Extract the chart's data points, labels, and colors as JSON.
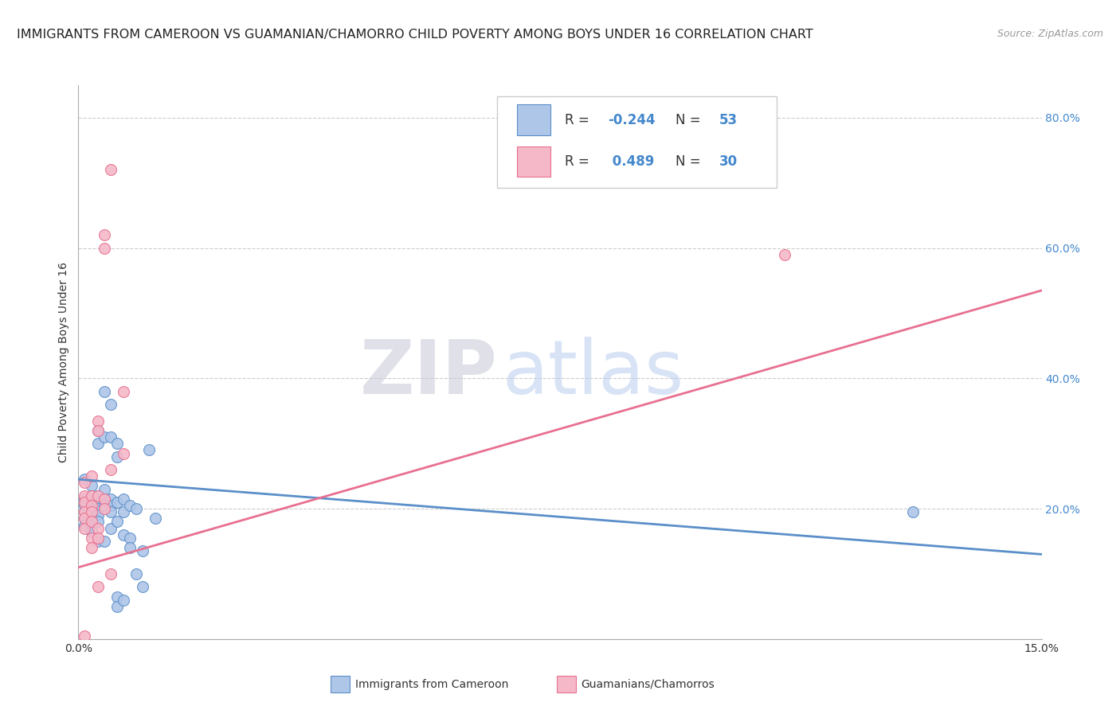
{
  "title": "IMMIGRANTS FROM CAMEROON VS GUAMANIAN/CHAMORRO CHILD POVERTY AMONG BOYS UNDER 16 CORRELATION CHART",
  "source": "Source: ZipAtlas.com",
  "ylabel": "Child Poverty Among Boys Under 16",
  "xlim": [
    0.0,
    0.15
  ],
  "ylim": [
    0.0,
    0.85
  ],
  "yticks": [
    0.0,
    0.2,
    0.4,
    0.6,
    0.8
  ],
  "ytick_labels": [
    "",
    "20.0%",
    "40.0%",
    "60.0%",
    "80.0%"
  ],
  "xticks": [
    0.0,
    0.05,
    0.1,
    0.15
  ],
  "xtick_labels": [
    "0.0%",
    "",
    "",
    "15.0%"
  ],
  "color_blue": "#aec6e8",
  "color_pink": "#f5b8c8",
  "line_blue": "#5b8fc9",
  "line_pink": "#e87090",
  "blue_r": "-0.244",
  "blue_n": "53",
  "pink_r": "0.489",
  "pink_n": "30",
  "blue_points": [
    [
      0.001,
      0.245
    ],
    [
      0.001,
      0.215
    ],
    [
      0.001,
      0.205
    ],
    [
      0.001,
      0.195
    ],
    [
      0.001,
      0.185
    ],
    [
      0.001,
      0.175
    ],
    [
      0.002,
      0.235
    ],
    [
      0.002,
      0.215
    ],
    [
      0.002,
      0.205
    ],
    [
      0.002,
      0.195
    ],
    [
      0.002,
      0.185
    ],
    [
      0.002,
      0.175
    ],
    [
      0.002,
      0.165
    ],
    [
      0.003,
      0.32
    ],
    [
      0.003,
      0.3
    ],
    [
      0.003,
      0.22
    ],
    [
      0.003,
      0.21
    ],
    [
      0.003,
      0.2
    ],
    [
      0.003,
      0.19
    ],
    [
      0.003,
      0.18
    ],
    [
      0.003,
      0.15
    ],
    [
      0.004,
      0.38
    ],
    [
      0.004,
      0.31
    ],
    [
      0.004,
      0.23
    ],
    [
      0.004,
      0.215
    ],
    [
      0.004,
      0.205
    ],
    [
      0.004,
      0.15
    ],
    [
      0.005,
      0.36
    ],
    [
      0.005,
      0.31
    ],
    [
      0.005,
      0.215
    ],
    [
      0.005,
      0.205
    ],
    [
      0.005,
      0.195
    ],
    [
      0.005,
      0.17
    ],
    [
      0.006,
      0.3
    ],
    [
      0.006,
      0.28
    ],
    [
      0.006,
      0.21
    ],
    [
      0.006,
      0.18
    ],
    [
      0.006,
      0.065
    ],
    [
      0.006,
      0.05
    ],
    [
      0.007,
      0.215
    ],
    [
      0.007,
      0.195
    ],
    [
      0.007,
      0.16
    ],
    [
      0.007,
      0.06
    ],
    [
      0.008,
      0.205
    ],
    [
      0.008,
      0.155
    ],
    [
      0.008,
      0.14
    ],
    [
      0.009,
      0.2
    ],
    [
      0.009,
      0.1
    ],
    [
      0.01,
      0.135
    ],
    [
      0.01,
      0.08
    ],
    [
      0.011,
      0.29
    ],
    [
      0.012,
      0.185
    ],
    [
      0.13,
      0.195
    ]
  ],
  "pink_points": [
    [
      0.001,
      0.24
    ],
    [
      0.001,
      0.22
    ],
    [
      0.001,
      0.21
    ],
    [
      0.001,
      0.195
    ],
    [
      0.001,
      0.185
    ],
    [
      0.001,
      0.17
    ],
    [
      0.001,
      0.005
    ],
    [
      0.002,
      0.25
    ],
    [
      0.002,
      0.22
    ],
    [
      0.002,
      0.205
    ],
    [
      0.002,
      0.195
    ],
    [
      0.002,
      0.18
    ],
    [
      0.002,
      0.155
    ],
    [
      0.002,
      0.14
    ],
    [
      0.003,
      0.335
    ],
    [
      0.003,
      0.32
    ],
    [
      0.003,
      0.22
    ],
    [
      0.003,
      0.17
    ],
    [
      0.003,
      0.155
    ],
    [
      0.003,
      0.08
    ],
    [
      0.004,
      0.62
    ],
    [
      0.004,
      0.6
    ],
    [
      0.004,
      0.215
    ],
    [
      0.004,
      0.2
    ],
    [
      0.005,
      0.72
    ],
    [
      0.005,
      0.26
    ],
    [
      0.005,
      0.1
    ],
    [
      0.007,
      0.38
    ],
    [
      0.007,
      0.285
    ],
    [
      0.11,
      0.59
    ]
  ],
  "blue_line": [
    [
      0.0,
      0.245
    ],
    [
      0.15,
      0.13
    ]
  ],
  "pink_line": [
    [
      0.0,
      0.11
    ],
    [
      0.15,
      0.535
    ]
  ],
  "background_color": "#ffffff",
  "grid_color": "#cccccc",
  "title_fontsize": 11.5,
  "axis_label_fontsize": 10,
  "tick_fontsize": 10,
  "legend_fontsize": 12,
  "watermark_zip": "ZIP",
  "watermark_atlas": "atlas",
  "legend_label_blue": "Immigrants from Cameroon",
  "legend_label_pink": "Guamanians/Chamorros"
}
